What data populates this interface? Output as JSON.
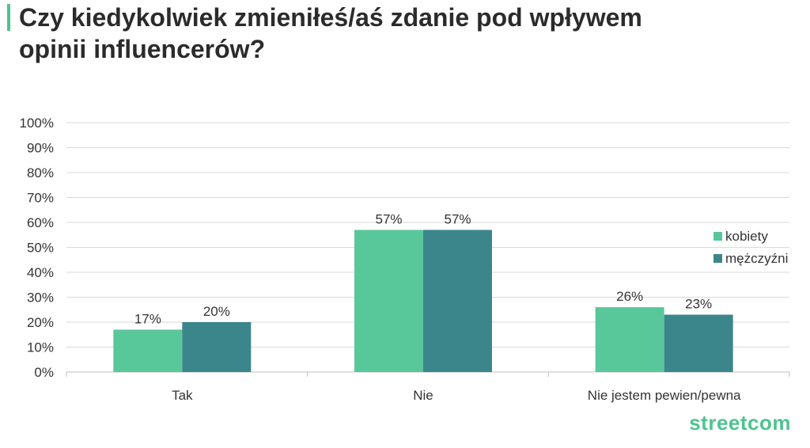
{
  "header": {
    "title_line1": "Czy kiedykolwiek zmieniłeś/aś  zdanie pod wpływem",
    "title_line2": "opinii influencerów?"
  },
  "brand": {
    "logo_text": "streetcom",
    "accent_color": "#4fc38f"
  },
  "chart_data": {
    "type": "bar",
    "categories": [
      "Tak",
      "Nie",
      "Nie jestem pewien/pewna"
    ],
    "series": [
      {
        "name": "kobiety",
        "values": [
          17,
          57,
          26
        ],
        "labels": [
          "17%",
          "57%",
          "26%"
        ],
        "color": "#58c79a"
      },
      {
        "name": "mężczyźni",
        "values": [
          20,
          57,
          23
        ],
        "labels": [
          "20%",
          "57%",
          "23%"
        ],
        "color": "#3b868b"
      }
    ],
    "ylim": [
      0,
      100
    ],
    "yticks": [
      "0%",
      "10%",
      "20%",
      "30%",
      "40%",
      "50%",
      "60%",
      "70%",
      "80%",
      "90%",
      "100%"
    ],
    "grid": true,
    "legend": "right"
  }
}
